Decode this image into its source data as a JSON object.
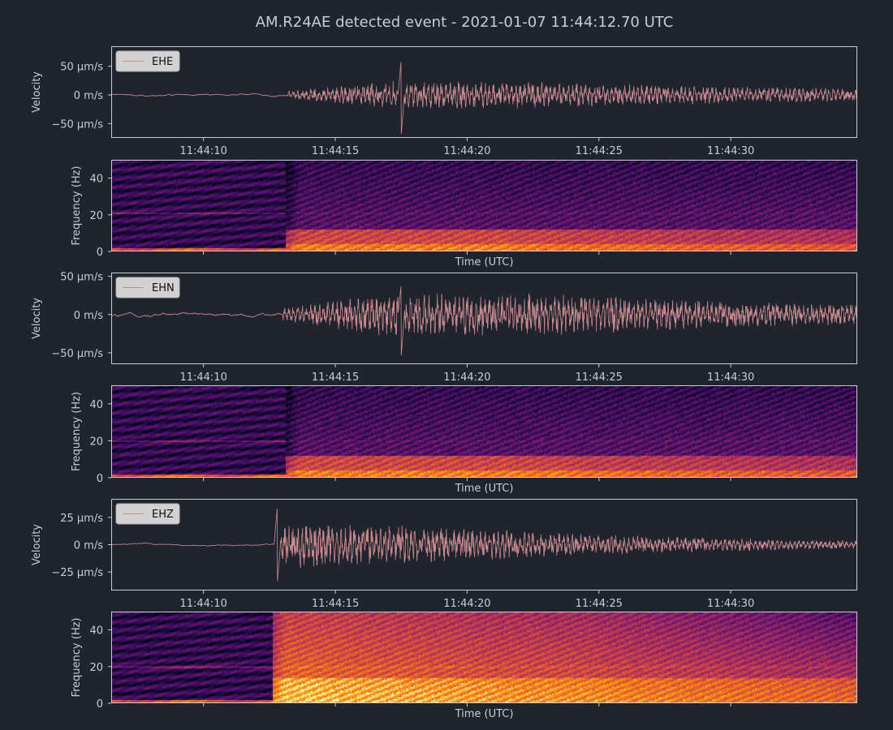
{
  "title": "AM.R24AE detected event - 2021-01-07 11:44:12.70 UTC",
  "colors": {
    "background": "#20242e",
    "axis": "#c8ccd4",
    "trace": "#c98a8e",
    "legend_bg": "#dcdcdc",
    "colormap": "inferno"
  },
  "time_axis": {
    "start": "11:44:06.5",
    "end": "11:44:34.8",
    "ticks": [
      "11:44:10",
      "11:44:15",
      "11:44:20",
      "11:44:25",
      "11:44:30"
    ],
    "tick_seconds": [
      10,
      15,
      20,
      25,
      30
    ],
    "start_seconds": 6.5,
    "end_seconds": 34.8,
    "xlabel": "Time (UTC)"
  },
  "chart_data": [
    {
      "type": "line",
      "channel": "EHE",
      "legend": "EHE",
      "ylabel": "Velocity",
      "yunit": "µm/s",
      "ylim": [
        -75,
        85
      ],
      "yticks": [
        50,
        0,
        -50
      ],
      "ytick_labels": [
        "50 µm/s",
        "0 m/s",
        "−50 µm/s"
      ],
      "onset_s": 13.2,
      "peak_s": 17.5,
      "noise_amplitude": 1.5,
      "coda_amplitude": 15,
      "max_amplitude": 62,
      "min_amplitude": -70,
      "legend_position": "top-left"
    },
    {
      "type": "heatmap",
      "channel": "EHE",
      "ylabel": "Frequency (Hz)",
      "xlabel": "Time (UTC)",
      "ylim": [
        0,
        50
      ],
      "yticks": [
        40,
        20,
        0
      ],
      "onset_s": 13.1,
      "noise_line_hz": 21,
      "energy_band_hz": [
        0,
        12
      ]
    },
    {
      "type": "line",
      "channel": "EHN",
      "legend": "EHN",
      "ylabel": "Velocity",
      "yunit": "µm/s",
      "ylim": [
        -65,
        55
      ],
      "yticks": [
        50,
        0,
        -50
      ],
      "ytick_labels": [
        "50 µm/s",
        "0 m/s",
        "−50 µm/s"
      ],
      "onset_s": 13.0,
      "peak_s": 17.5,
      "noise_amplitude": 2,
      "coda_amplitude": 18,
      "max_amplitude": 40,
      "min_amplitude": -55,
      "legend_position": "top-left"
    },
    {
      "type": "heatmap",
      "channel": "EHN",
      "ylabel": "Frequency (Hz)",
      "xlabel": "Time (UTC)",
      "ylim": [
        0,
        50
      ],
      "yticks": [
        40,
        20,
        0
      ],
      "onset_s": 13.1,
      "noise_line_hz": 20,
      "energy_band_hz": [
        0,
        12
      ]
    },
    {
      "type": "line",
      "channel": "EHZ",
      "legend": "EHZ",
      "ylabel": "Velocity",
      "yunit": "µm/s",
      "ylim": [
        -42,
        42
      ],
      "yticks": [
        25,
        0,
        -25
      ],
      "ytick_labels": [
        "25 µm/s",
        "0 m/s",
        "−25 µm/s"
      ],
      "onset_s": 12.7,
      "peak_s": 12.8,
      "noise_amplitude": 0.6,
      "coda_amplitude": 14,
      "max_amplitude": 35,
      "min_amplitude": -35,
      "legend_position": "top-left"
    },
    {
      "type": "heatmap",
      "channel": "EHZ",
      "ylabel": "Frequency (Hz)",
      "xlabel": "Time (UTC)",
      "ylim": [
        0,
        50
      ],
      "yticks": [
        40,
        20,
        0
      ],
      "onset_s": 12.6,
      "noise_line_hz": 20,
      "energy_band_hz": [
        0,
        50
      ]
    }
  ]
}
